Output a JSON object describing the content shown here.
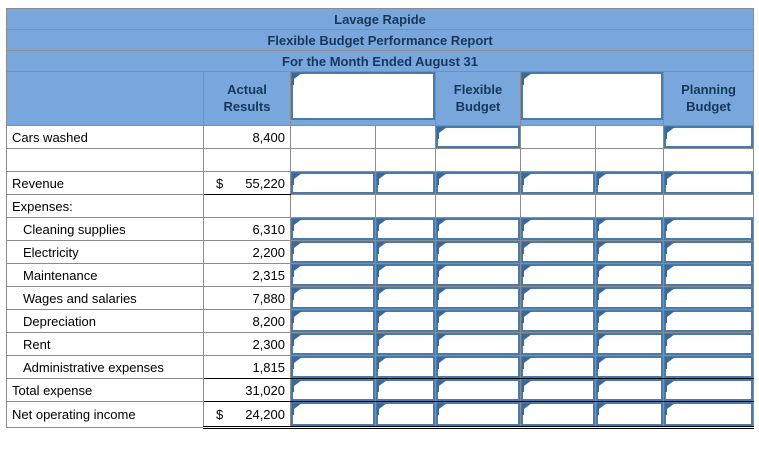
{
  "title": {
    "company": "Lavage Rapide",
    "report": "Flexible Budget Performance Report",
    "period": "For the Month Ended August 31"
  },
  "columns": {
    "actual": "Actual Results",
    "flexible": "Flexible Budget",
    "planning": "Planning Budget"
  },
  "icons": {
    "input_marker": "answer-flag-icon"
  },
  "colors": {
    "header_bg": "#79A7DB",
    "header_text": "#17375D",
    "input_border": "#4A7BA8",
    "flag": "#3A689B",
    "grid": "#8C8C8C",
    "rule": "#000000"
  },
  "rows": [
    {
      "label": "Cars washed",
      "indent": false,
      "dollar": "",
      "value": "8,400",
      "inputs": [
        false,
        false,
        true,
        false,
        false,
        true
      ],
      "rowline": "",
      "actual_line": ""
    },
    {
      "label": "",
      "indent": false,
      "dollar": "",
      "value": "",
      "inputs": [
        false,
        false,
        false,
        false,
        false,
        false
      ],
      "rowline": "",
      "actual_line": ""
    },
    {
      "label": "Revenue",
      "indent": false,
      "dollar": "$",
      "value": "55,220",
      "inputs": [
        true,
        true,
        true,
        true,
        true,
        true
      ],
      "rowline": "",
      "actual_line": "single"
    },
    {
      "label": "Expenses:",
      "indent": false,
      "dollar": "",
      "value": "",
      "inputs": [
        false,
        false,
        false,
        false,
        false,
        false
      ],
      "rowline": "",
      "actual_line": ""
    },
    {
      "label": "Cleaning supplies",
      "indent": true,
      "dollar": "",
      "value": "6,310",
      "inputs": [
        true,
        true,
        true,
        true,
        true,
        true
      ],
      "rowline": "",
      "actual_line": ""
    },
    {
      "label": "Electricity",
      "indent": true,
      "dollar": "",
      "value": "2,200",
      "inputs": [
        true,
        true,
        true,
        true,
        true,
        true
      ],
      "rowline": "",
      "actual_line": ""
    },
    {
      "label": "Maintenance",
      "indent": true,
      "dollar": "",
      "value": "2,315",
      "inputs": [
        true,
        true,
        true,
        true,
        true,
        true
      ],
      "rowline": "",
      "actual_line": ""
    },
    {
      "label": "Wages and salaries",
      "indent": true,
      "dollar": "",
      "value": "7,880",
      "inputs": [
        true,
        true,
        true,
        true,
        true,
        true
      ],
      "rowline": "",
      "actual_line": ""
    },
    {
      "label": "Depreciation",
      "indent": true,
      "dollar": "",
      "value": "8,200",
      "inputs": [
        true,
        true,
        true,
        true,
        true,
        true
      ],
      "rowline": "",
      "actual_line": ""
    },
    {
      "label": "Rent",
      "indent": true,
      "dollar": "",
      "value": "2,300",
      "inputs": [
        true,
        true,
        true,
        true,
        true,
        true
      ],
      "rowline": "",
      "actual_line": ""
    },
    {
      "label": "Administrative expenses",
      "indent": true,
      "dollar": "",
      "value": "1,815",
      "inputs": [
        true,
        true,
        true,
        true,
        true,
        true
      ],
      "rowline": "single",
      "actual_line": "single"
    },
    {
      "label": "Total expense",
      "indent": false,
      "dollar": "",
      "value": "31,020",
      "inputs": [
        true,
        true,
        true,
        true,
        true,
        true
      ],
      "rowline": "single",
      "actual_line": "single"
    },
    {
      "label": "Net operating income",
      "indent": false,
      "dollar": "$",
      "value": "24,200",
      "inputs": [
        true,
        true,
        true,
        true,
        true,
        true
      ],
      "rowline": "double",
      "actual_line": "double",
      "tall": true
    }
  ]
}
